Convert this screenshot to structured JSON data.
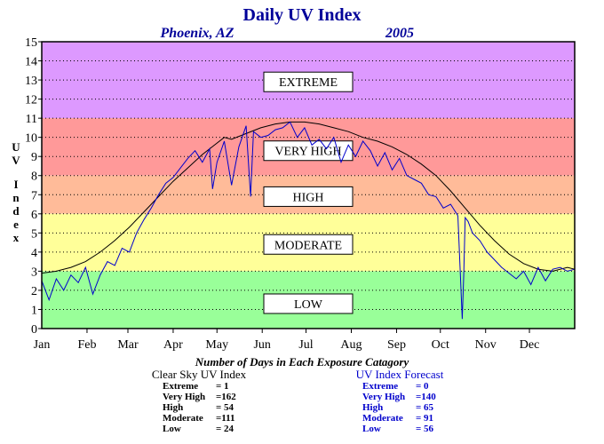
{
  "colors": {
    "extreme": "#dd99ff",
    "very_high": "#ff9999",
    "high": "#ffbb99",
    "moderate": "#ffff99",
    "low": "#99ff99",
    "title": "#000099",
    "clear_sky_line": "#000000",
    "forecast_line": "#0000cc"
  },
  "chart_data": {
    "type": "line",
    "title": "Daily UV Index",
    "location": "Phoenix, AZ",
    "year": "2005",
    "ylabel": "UV Index",
    "ylim": [
      0,
      15
    ],
    "xlim": [
      0,
      365
    ],
    "yticks": [
      "0",
      "1",
      "2",
      "3",
      "4",
      "5",
      "6",
      "7",
      "8",
      "9",
      "10",
      "11",
      "12",
      "13",
      "14",
      "15"
    ],
    "months": [
      "Jan",
      "Feb",
      "Mar",
      "Apr",
      "May",
      "Jun",
      "Jul",
      "Aug",
      "Sep",
      "Oct",
      "Nov",
      "Dec"
    ],
    "month_starts": [
      0,
      31,
      59,
      90,
      120,
      151,
      181,
      212,
      243,
      273,
      304,
      334
    ],
    "grid": true,
    "bands": [
      {
        "label": "EXTREME",
        "from": 11,
        "to": 15,
        "color": "#dd99ff",
        "label_y": 12.9
      },
      {
        "label": "VERY HIGH",
        "from": 8,
        "to": 11,
        "color": "#ff9999",
        "label_y": 9.3
      },
      {
        "label": "HIGH",
        "from": 6,
        "to": 8,
        "color": "#ffbb99",
        "label_y": 6.9
      },
      {
        "label": "MODERATE",
        "from": 3,
        "to": 6,
        "color": "#ffff99",
        "label_y": 4.4
      },
      {
        "label": "LOW",
        "from": 0,
        "to": 3,
        "color": "#99ff99",
        "label_y": 1.3
      }
    ],
    "series": [
      {
        "name": "Clear Sky UV Index",
        "color": "#000000",
        "x": [
          0,
          10,
          20,
          30,
          40,
          50,
          60,
          70,
          80,
          90,
          100,
          110,
          120,
          125,
          130,
          140,
          150,
          160,
          170,
          180,
          190,
          200,
          210,
          220,
          230,
          240,
          250,
          260,
          270,
          280,
          290,
          300,
          310,
          320,
          330,
          340,
          350,
          360,
          365
        ],
        "y": [
          2.9,
          3.0,
          3.2,
          3.5,
          4.0,
          4.6,
          5.3,
          6.1,
          6.9,
          7.7,
          8.4,
          9.1,
          9.7,
          10.0,
          9.9,
          10.2,
          10.5,
          10.7,
          10.8,
          10.8,
          10.7,
          10.5,
          10.3,
          10.0,
          9.8,
          9.5,
          9.1,
          8.6,
          8.0,
          7.2,
          6.3,
          5.4,
          4.6,
          3.9,
          3.4,
          3.1,
          3.0,
          3.2,
          3.1
        ]
      },
      {
        "name": "UV Index Forecast",
        "color": "#0000cc",
        "x": [
          0,
          5,
          10,
          15,
          20,
          25,
          30,
          35,
          40,
          45,
          50,
          55,
          60,
          65,
          70,
          75,
          80,
          85,
          90,
          95,
          100,
          105,
          110,
          115,
          117,
          120,
          125,
          130,
          135,
          140,
          143,
          145,
          150,
          155,
          160,
          165,
          170,
          175,
          180,
          185,
          190,
          195,
          200,
          205,
          210,
          215,
          220,
          225,
          230,
          235,
          240,
          245,
          250,
          255,
          260,
          265,
          270,
          275,
          280,
          285,
          288,
          289,
          290,
          292,
          295,
          300,
          305,
          310,
          315,
          320,
          325,
          330,
          335,
          340,
          345,
          350,
          355,
          360,
          365
        ],
        "y": [
          2.5,
          1.5,
          2.6,
          2.0,
          2.8,
          2.4,
          3.2,
          1.8,
          2.8,
          3.5,
          3.3,
          4.2,
          4.0,
          5.0,
          5.7,
          6.3,
          7.0,
          7.6,
          7.9,
          8.4,
          8.9,
          9.3,
          8.7,
          9.4,
          7.3,
          8.7,
          9.8,
          7.5,
          9.5,
          10.6,
          6.9,
          10.3,
          10.0,
          10.1,
          10.4,
          10.5,
          10.8,
          10.0,
          10.5,
          9.6,
          9.9,
          9.4,
          10.0,
          8.7,
          9.6,
          9.0,
          9.8,
          9.3,
          8.5,
          9.2,
          8.3,
          8.9,
          8.0,
          7.8,
          7.6,
          7.0,
          6.9,
          6.3,
          6.5,
          5.9,
          0.5,
          2.8,
          5.8,
          5.6,
          5.0,
          4.6,
          4.0,
          3.6,
          3.2,
          2.9,
          2.6,
          3.0,
          2.3,
          3.2,
          2.5,
          3.1,
          3.2,
          3.0,
          3.1
        ]
      }
    ]
  },
  "summary": {
    "heading": "Number of Days in Each Exposure Catagory",
    "clear_sky": {
      "title": "Clear Sky UV Index",
      "rows": [
        {
          "label": "Extreme",
          "value": "=    1"
        },
        {
          "label": "Very High",
          "value": "=162"
        },
        {
          "label": "High",
          "value": "=  54"
        },
        {
          "label": "Moderate",
          "value": "=111"
        },
        {
          "label": "Low",
          "value": "=  24"
        }
      ]
    },
    "forecast": {
      "title": "UV Index Forecast",
      "rows": [
        {
          "label": "Extreme",
          "value": "=    0"
        },
        {
          "label": "Very High",
          "value": "=140"
        },
        {
          "label": "High",
          "value": "=  65"
        },
        {
          "label": "Moderate",
          "value": "=  91"
        },
        {
          "label": "Low",
          "value": "=  56"
        }
      ]
    }
  }
}
